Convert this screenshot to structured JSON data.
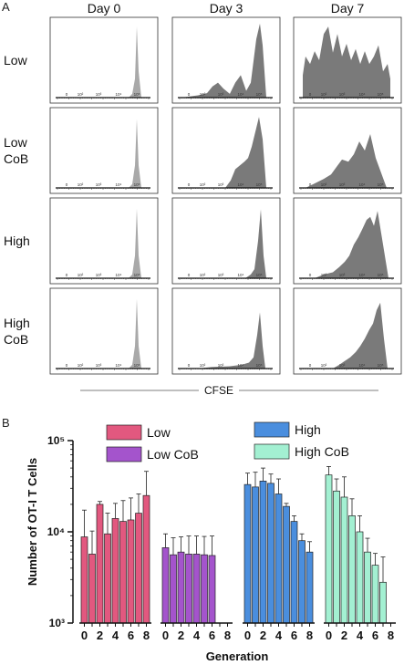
{
  "panel_a_letter": "A",
  "panel_b_letter": "B",
  "chart_data": [
    {
      "type": "area",
      "panel": "A",
      "columns": [
        "Day 0",
        "Day 3",
        "Day 7"
      ],
      "rows": [
        "Low",
        "Low CoB",
        "High",
        "High CoB"
      ],
      "xlabel": "CFSE",
      "x_tick_labels": [
        "0",
        "10²",
        "10³",
        "10⁴",
        "10⁵"
      ],
      "fill_colors": {
        "Day 0": "#a9a9a9",
        "Day 3": "#7a7a7a",
        "Day 7": "#7a7a7a"
      },
      "histograms": [
        {
          "row": "Low",
          "col": "Day 0",
          "x": [
            0.78,
            0.82,
            0.85,
            0.87,
            0.89,
            0.92
          ],
          "y": [
            0,
            0.05,
            0.25,
            0.95,
            0.35,
            0
          ]
        },
        {
          "row": "Low",
          "col": "Day 3",
          "x": [
            0.02,
            0.2,
            0.3,
            0.36,
            0.42,
            0.48,
            0.55,
            0.61,
            0.67,
            0.73,
            0.78,
            0.84,
            0.88,
            0.91,
            0.95
          ],
          "y": [
            0,
            0.03,
            0.06,
            0.15,
            0.2,
            0.12,
            0.05,
            0.2,
            0.3,
            0.09,
            0.2,
            0.78,
            0.99,
            0.7,
            0
          ]
        },
        {
          "row": "Low",
          "col": "Day 7",
          "x": [
            0.02,
            0.05,
            0.1,
            0.15,
            0.2,
            0.25,
            0.3,
            0.35,
            0.4,
            0.45,
            0.5,
            0.55,
            0.6,
            0.65,
            0.7,
            0.75,
            0.8,
            0.85,
            0.9,
            0.95,
            0.98
          ],
          "y": [
            0.3,
            0.55,
            0.45,
            0.62,
            0.5,
            0.85,
            0.95,
            0.6,
            0.85,
            0.55,
            0.72,
            0.5,
            0.65,
            0.45,
            0.62,
            0.45,
            0.55,
            0.7,
            0.35,
            0.45,
            0.25
          ]
        },
        {
          "row": "Low CoB",
          "col": "Day 0",
          "x": [
            0.78,
            0.82,
            0.85,
            0.87,
            0.89,
            0.92
          ],
          "y": [
            0,
            0.05,
            0.3,
            0.92,
            0.3,
            0
          ]
        },
        {
          "row": "Low CoB",
          "col": "Day 3",
          "x": [
            0.5,
            0.56,
            0.61,
            0.66,
            0.71,
            0.75,
            0.79,
            0.83,
            0.87,
            0.91,
            0.95
          ],
          "y": [
            0,
            0.1,
            0.25,
            0.3,
            0.35,
            0.4,
            0.55,
            0.75,
            0.95,
            0.65,
            0
          ]
        },
        {
          "row": "Low CoB",
          "col": "Day 7",
          "x": [
            0.05,
            0.15,
            0.25,
            0.33,
            0.39,
            0.45,
            0.52,
            0.58,
            0.64,
            0.7,
            0.76,
            0.82,
            0.88,
            0.94
          ],
          "y": [
            0,
            0.06,
            0.12,
            0.18,
            0.28,
            0.38,
            0.35,
            0.45,
            0.62,
            0.5,
            0.72,
            0.4,
            0.2,
            0
          ]
        },
        {
          "row": "High",
          "col": "Day 0",
          "x": [
            0.78,
            0.82,
            0.85,
            0.87,
            0.89,
            0.92
          ],
          "y": [
            0,
            0.05,
            0.3,
            0.93,
            0.3,
            0
          ]
        },
        {
          "row": "High",
          "col": "Day 3",
          "x": [
            0.72,
            0.78,
            0.82,
            0.86,
            0.89,
            0.92,
            0.95
          ],
          "y": [
            0,
            0.05,
            0.12,
            0.5,
            0.92,
            0.3,
            0
          ]
        },
        {
          "row": "High",
          "col": "Day 7",
          "x": [
            0.15,
            0.25,
            0.35,
            0.42,
            0.48,
            0.53,
            0.58,
            0.63,
            0.67,
            0.72,
            0.76,
            0.8,
            0.84,
            0.88,
            0.92,
            0.96
          ],
          "y": [
            0,
            0.05,
            0.08,
            0.15,
            0.22,
            0.3,
            0.45,
            0.55,
            0.65,
            0.78,
            0.82,
            0.7,
            0.9,
            0.6,
            0.3,
            0
          ]
        },
        {
          "row": "High CoB",
          "col": "Day 0",
          "x": [
            0.78,
            0.82,
            0.85,
            0.87,
            0.89,
            0.92
          ],
          "y": [
            0,
            0.05,
            0.3,
            0.93,
            0.3,
            0
          ]
        },
        {
          "row": "High CoB",
          "col": "Day 3",
          "x": [
            0.2,
            0.35,
            0.55,
            0.68,
            0.76,
            0.81,
            0.85,
            0.88,
            0.91,
            0.94
          ],
          "y": [
            0,
            0.02,
            0.03,
            0.05,
            0.08,
            0.15,
            0.45,
            0.75,
            0.3,
            0
          ]
        },
        {
          "row": "High CoB",
          "col": "Day 7",
          "x": [
            0.35,
            0.42,
            0.48,
            0.54,
            0.6,
            0.65,
            0.7,
            0.75,
            0.79,
            0.83,
            0.87,
            0.91,
            0.95
          ],
          "y": [
            0,
            0.05,
            0.1,
            0.15,
            0.22,
            0.3,
            0.4,
            0.52,
            0.6,
            0.78,
            0.88,
            0.4,
            0
          ]
        }
      ]
    },
    {
      "type": "bar",
      "panel": "B",
      "ylabel": "Number of OT-I T Cells",
      "xlabel": "Generation",
      "y_scale": "log",
      "ylim": [
        1000,
        100000
      ],
      "y_ticks": [
        {
          "value": 1000,
          "label": "10³"
        },
        {
          "value": 10000,
          "label": "10⁴"
        },
        {
          "value": 100000,
          "label": "10⁵"
        }
      ],
      "categories": [
        "0",
        "1",
        "2",
        "3",
        "4",
        "5",
        "6",
        "7",
        "8"
      ],
      "category_labels": [
        "0",
        "",
        "2",
        "",
        "4",
        "",
        "6",
        "",
        "8"
      ],
      "series": [
        {
          "name": "Low",
          "color": "#e2587f",
          "values": [
            8800,
            5700,
            20000,
            9500,
            14000,
            13000,
            13500,
            16000,
            25000
          ],
          "errors": [
            8500,
            4500,
            1500,
            6500,
            6500,
            9000,
            10000,
            10000,
            21000
          ]
        },
        {
          "name": "Low CoB",
          "color": "#a454cc",
          "values": [
            6700,
            5600,
            6000,
            5700,
            5700,
            5600,
            5500,
            null,
            null
          ],
          "errors": [
            2800,
            3000,
            2800,
            3300,
            3300,
            3300,
            3500,
            null,
            null
          ]
        },
        {
          "name": "High",
          "color": "#4a8ede",
          "values": [
            33000,
            31000,
            36000,
            34000,
            26000,
            19000,
            13000,
            8000,
            6000
          ],
          "errors": [
            11000,
            14000,
            14000,
            9000,
            12000,
            1500,
            2000,
            1500,
            1800
          ]
        },
        {
          "name": "High CoB",
          "color": "#a3f0d2",
          "values": [
            42000,
            28000,
            24000,
            15000,
            10000,
            6000,
            4300,
            2800,
            null
          ],
          "errors": [
            10000,
            10000,
            16000,
            8000,
            5000,
            2500,
            1500,
            2500,
            null
          ]
        }
      ],
      "legend": [
        "Low",
        "Low CoB",
        "High",
        "High CoB"
      ]
    }
  ]
}
